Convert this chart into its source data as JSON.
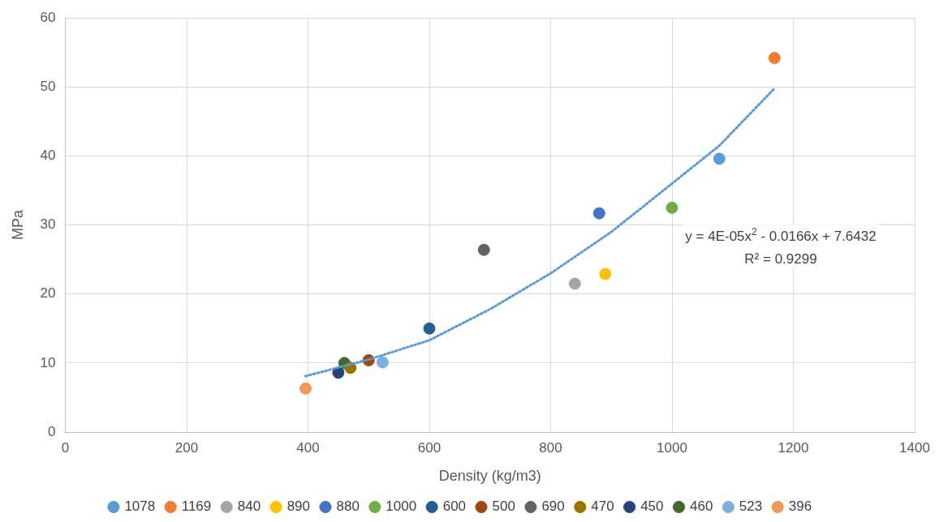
{
  "chart_data": {
    "type": "scatter",
    "xlabel": "Density (kg/m3)",
    "ylabel": "MPa",
    "xlim": [
      0,
      1400
    ],
    "xticks": [
      0,
      200,
      400,
      600,
      800,
      1000,
      1200,
      1400
    ],
    "ylim": [
      0,
      60
    ],
    "yticks": [
      0,
      10,
      20,
      30,
      40,
      50,
      60
    ],
    "grid": true,
    "legend": "bottom",
    "marker": "circle",
    "series": [
      {
        "name": "1078",
        "color": "#5b9bd5",
        "x": [
          1078
        ],
        "values": [
          39.6
        ]
      },
      {
        "name": "1169",
        "color": "#ed7d31",
        "x": [
          1169
        ],
        "values": [
          54.2
        ]
      },
      {
        "name": "840",
        "color": "#a5a5a5",
        "x": [
          840
        ],
        "values": [
          21.5
        ]
      },
      {
        "name": "890",
        "color": "#ffc000",
        "x": [
          890
        ],
        "values": [
          22.9
        ]
      },
      {
        "name": "880",
        "color": "#4472c4",
        "x": [
          880
        ],
        "values": [
          31.7
        ]
      },
      {
        "name": "1000",
        "color": "#70ad47",
        "x": [
          1000
        ],
        "values": [
          32.5
        ]
      },
      {
        "name": "600",
        "color": "#255e91",
        "x": [
          600
        ],
        "values": [
          15.0
        ]
      },
      {
        "name": "500",
        "color": "#9e480e",
        "x": [
          500
        ],
        "values": [
          10.4
        ]
      },
      {
        "name": "690",
        "color": "#636363",
        "x": [
          690
        ],
        "values": [
          26.4
        ]
      },
      {
        "name": "470",
        "color": "#997300",
        "x": [
          470
        ],
        "values": [
          9.3
        ]
      },
      {
        "name": "450",
        "color": "#264478",
        "x": [
          450
        ],
        "values": [
          8.6
        ]
      },
      {
        "name": "460",
        "color": "#43682b",
        "x": [
          460
        ],
        "values": [
          10.0
        ]
      },
      {
        "name": "523",
        "color": "#7cafdd",
        "x": [
          523
        ],
        "values": [
          10.1
        ]
      },
      {
        "name": "396",
        "color": "#f1975a",
        "x": [
          396
        ],
        "values": [
          6.3
        ]
      },
      {
        "type": "line",
        "color": "#5b9bd5",
        "line_style": "dotted",
        "marker": "none",
        "x": [
          396,
          500,
          600,
          700,
          800,
          900,
          1000,
          1078,
          1169
        ],
        "values": [
          8.1,
          10.5,
          13.3,
          17.8,
          23.0,
          29.0,
          36.0,
          41.5,
          49.8
        ]
      }
    ],
    "annotations": [
      "y = 4E-05x$^{2}$ - 0.0166x + 7.6432",
      "R² = 0.9299"
    ]
  }
}
